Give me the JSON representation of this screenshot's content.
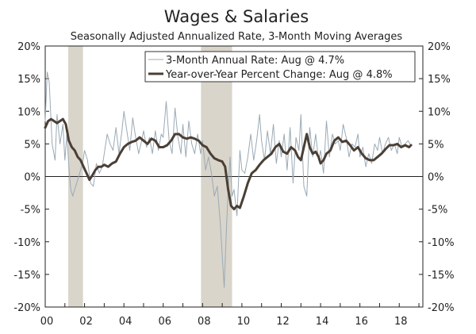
{
  "chart_data": {
    "type": "line",
    "title": "Wages & Salaries",
    "subtitle": "Seasonally Adjusted Annualized Rate, 3-Month Moving Averages",
    "xlabel": "",
    "ylabel": "",
    "xlim": [
      2000,
      2019.2
    ],
    "ylim": [
      -20,
      20
    ],
    "x_ticks": [
      2000,
      2002,
      2004,
      2006,
      2008,
      2010,
      2012,
      2014,
      2016,
      2018
    ],
    "x_tick_labels": [
      "00",
      "02",
      "04",
      "06",
      "08",
      "10",
      "12",
      "14",
      "16",
      "18"
    ],
    "y_ticks": [
      -20,
      -15,
      -10,
      -5,
      0,
      5,
      10,
      15,
      20
    ],
    "y_tick_labels": [
      "-20%",
      "-15%",
      "-10%",
      "-5%",
      "0%",
      "5%",
      "10%",
      "15%",
      "20%"
    ],
    "grid": false,
    "legend_position": "top-right",
    "recessions": [
      [
        2001.17,
        2001.92
      ],
      [
        2007.92,
        2009.5
      ]
    ],
    "colors": {
      "series1": "#9aaab6",
      "series2": "#4a3f35",
      "recession": "#d9d5cb",
      "axis": "#222222"
    },
    "series": [
      {
        "name": "3-Month Annual Rate: Aug @ 4.7%",
        "style": "thin",
        "x": [
          2000.0,
          2000.1,
          2000.2,
          2000.35,
          2000.5,
          2000.6,
          2000.75,
          2000.9,
          2001.0,
          2001.1,
          2001.2,
          2001.3,
          2001.4,
          2001.5,
          2001.6,
          2001.75,
          2001.9,
          2002.0,
          2002.15,
          2002.3,
          2002.45,
          2002.6,
          2002.75,
          2002.9,
          2003.0,
          2003.15,
          2003.3,
          2003.45,
          2003.6,
          2003.75,
          2003.9,
          2004.0,
          2004.15,
          2004.3,
          2004.45,
          2004.6,
          2004.75,
          2004.9,
          2005.0,
          2005.15,
          2005.3,
          2005.45,
          2005.6,
          2005.75,
          2005.9,
          2006.0,
          2006.15,
          2006.3,
          2006.45,
          2006.6,
          2006.75,
          2006.9,
          2007.0,
          2007.15,
          2007.3,
          2007.45,
          2007.6,
          2007.75,
          2007.9,
          2008.0,
          2008.15,
          2008.3,
          2008.45,
          2008.6,
          2008.75,
          2008.9,
          2009.0,
          2009.1,
          2009.2,
          2009.3,
          2009.4,
          2009.5,
          2009.6,
          2009.75,
          2009.9,
          2010.0,
          2010.15,
          2010.3,
          2010.45,
          2010.6,
          2010.75,
          2010.9,
          2011.0,
          2011.15,
          2011.3,
          2011.45,
          2011.6,
          2011.75,
          2011.9,
          2012.0,
          2012.15,
          2012.3,
          2012.45,
          2012.6,
          2012.75,
          2012.9,
          2013.0,
          2013.15,
          2013.3,
          2013.45,
          2013.6,
          2013.75,
          2013.9,
          2014.0,
          2014.15,
          2014.3,
          2014.45,
          2014.6,
          2014.75,
          2014.9,
          2015.0,
          2015.15,
          2015.3,
          2015.45,
          2015.6,
          2015.75,
          2015.9,
          2016.0,
          2016.15,
          2016.3,
          2016.45,
          2016.6,
          2016.75,
          2016.9,
          2017.0,
          2017.15,
          2017.3,
          2017.45,
          2017.6,
          2017.75,
          2017.9,
          2018.0,
          2018.15,
          2018.3,
          2018.45,
          2018.6
        ],
        "values": [
          8.5,
          16.0,
          14.5,
          5.0,
          2.5,
          9.5,
          5.0,
          8.0,
          2.5,
          6.5,
          1.5,
          -2.0,
          -3.0,
          -2.0,
          -1.0,
          0.5,
          2.0,
          4.0,
          2.5,
          -1.0,
          -1.5,
          2.0,
          0.5,
          1.5,
          3.5,
          6.5,
          5.0,
          4.0,
          7.5,
          3.5,
          7.0,
          10.0,
          7.0,
          4.0,
          9.0,
          6.0,
          3.5,
          5.5,
          7.0,
          4.5,
          6.0,
          3.5,
          7.0,
          4.0,
          6.5,
          6.0,
          11.5,
          5.5,
          3.5,
          10.5,
          6.0,
          3.5,
          8.0,
          3.0,
          8.5,
          5.0,
          3.5,
          6.5,
          3.5,
          5.5,
          1.0,
          3.0,
          0.5,
          -3.0,
          -1.5,
          -7.0,
          -12.0,
          -17.0,
          -9.0,
          -2.0,
          3.0,
          -3.0,
          -2.0,
          -6.0,
          4.0,
          1.0,
          0.5,
          3.0,
          6.5,
          2.5,
          5.5,
          9.5,
          5.5,
          2.5,
          7.0,
          3.5,
          8.0,
          2.0,
          5.5,
          3.0,
          6.5,
          1.0,
          7.5,
          -1.0,
          6.0,
          4.0,
          9.5,
          -1.5,
          -3.0,
          7.5,
          3.0,
          6.5,
          2.5,
          4.0,
          0.5,
          8.5,
          3.0,
          6.5,
          5.0,
          5.5,
          4.0,
          8.0,
          6.0,
          3.0,
          5.0,
          4.5,
          6.5,
          3.0,
          4.5,
          1.5,
          3.5,
          2.0,
          5.0,
          4.0,
          6.0,
          3.5,
          5.0,
          6.0,
          4.0,
          5.0,
          3.5,
          6.0,
          4.5,
          5.0,
          5.5,
          4.7
        ]
      },
      {
        "name": "Year-over-Year Percent Change: Aug @ 4.8%",
        "style": "thick",
        "x": [
          2000.0,
          2000.15,
          2000.3,
          2000.45,
          2000.6,
          2000.75,
          2000.9,
          2001.05,
          2001.2,
          2001.35,
          2001.5,
          2001.65,
          2001.8,
          2001.95,
          2002.1,
          2002.25,
          2002.4,
          2002.55,
          2002.7,
          2002.85,
          2003.0,
          2003.2,
          2003.4,
          2003.6,
          2003.8,
          2004.0,
          2004.2,
          2004.4,
          2004.6,
          2004.8,
          2005.0,
          2005.2,
          2005.4,
          2005.6,
          2005.8,
          2006.0,
          2006.2,
          2006.4,
          2006.6,
          2006.8,
          2007.0,
          2007.2,
          2007.4,
          2007.6,
          2007.8,
          2008.0,
          2008.2,
          2008.4,
          2008.6,
          2008.8,
          2009.0,
          2009.15,
          2009.3,
          2009.45,
          2009.6,
          2009.75,
          2009.9,
          2010.1,
          2010.3,
          2010.5,
          2010.7,
          2010.9,
          2011.1,
          2011.3,
          2011.5,
          2011.7,
          2011.9,
          2012.1,
          2012.3,
          2012.5,
          2012.7,
          2012.85,
          2013.0,
          2013.15,
          2013.3,
          2013.45,
          2013.6,
          2013.75,
          2013.9,
          2014.0,
          2014.15,
          2014.3,
          2014.5,
          2014.7,
          2014.9,
          2015.1,
          2015.3,
          2015.5,
          2015.7,
          2015.9,
          2016.1,
          2016.3,
          2016.5,
          2016.7,
          2016.9,
          2017.1,
          2017.3,
          2017.5,
          2017.7,
          2017.9,
          2018.1,
          2018.3,
          2018.5,
          2018.6
        ],
        "values": [
          7.5,
          8.5,
          8.8,
          8.5,
          8.2,
          8.5,
          8.8,
          8.0,
          5.5,
          4.5,
          4.0,
          3.0,
          2.5,
          1.5,
          0.5,
          -0.5,
          0.2,
          1.0,
          1.5,
          1.5,
          1.8,
          1.5,
          2.0,
          2.3,
          3.5,
          4.5,
          5.0,
          5.3,
          5.5,
          6.0,
          5.5,
          5.0,
          5.8,
          5.5,
          4.5,
          4.5,
          4.8,
          5.5,
          6.5,
          6.5,
          6.0,
          5.8,
          6.0,
          5.8,
          5.5,
          4.8,
          4.5,
          3.5,
          2.8,
          2.5,
          2.3,
          1.5,
          -2.0,
          -4.5,
          -5.0,
          -4.5,
          -4.8,
          -3.0,
          -1.0,
          0.5,
          1.0,
          1.8,
          2.5,
          3.0,
          3.5,
          4.5,
          5.0,
          3.8,
          3.5,
          4.5,
          4.0,
          3.0,
          2.5,
          4.5,
          6.5,
          4.5,
          3.5,
          3.8,
          3.0,
          2.0,
          2.5,
          3.5,
          4.0,
          5.5,
          6.0,
          5.3,
          5.5,
          4.8,
          4.0,
          4.5,
          3.5,
          2.8,
          2.5,
          2.5,
          3.0,
          3.5,
          4.2,
          4.8,
          4.8,
          5.0,
          4.5,
          4.8,
          4.5,
          4.8
        ]
      }
    ]
  }
}
